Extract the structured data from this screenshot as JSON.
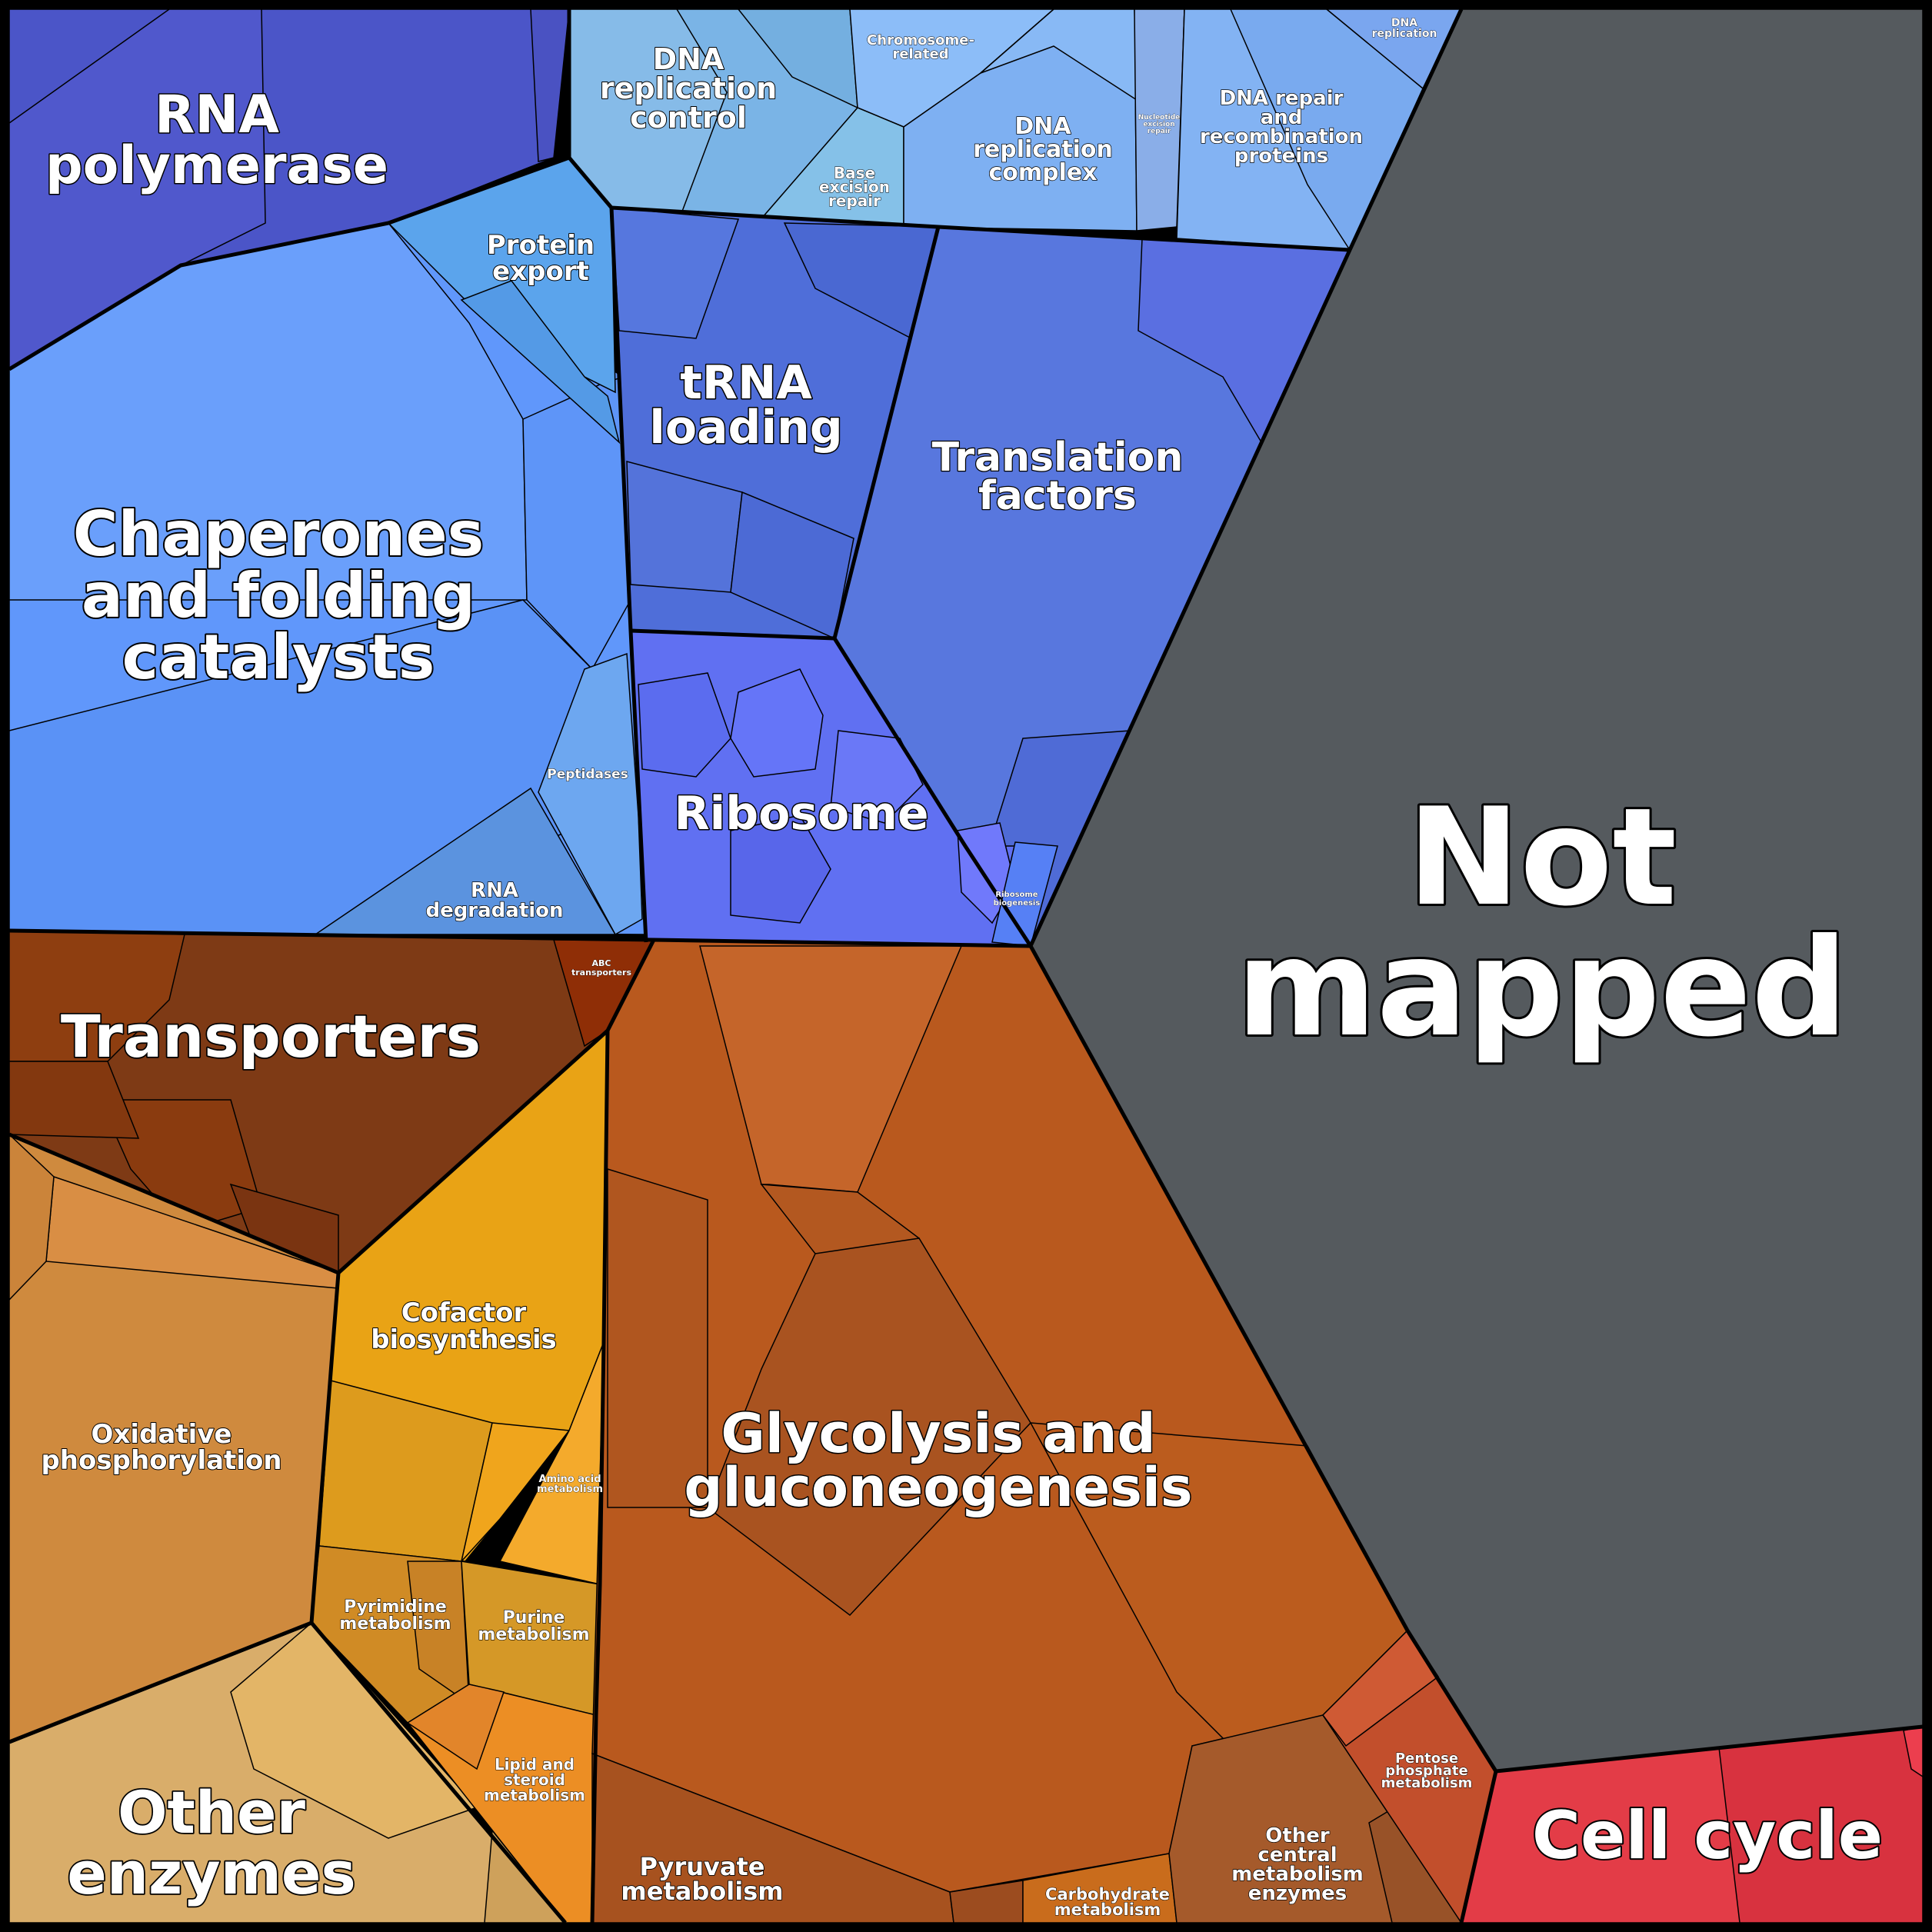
{
  "chart_data": {
    "type": "voronoi-treemap",
    "title": "",
    "colors": {
      "not_mapped": "#555a5e",
      "cell_cycle": "#e33c47",
      "genetic_info": "#5a8ff5",
      "metabolism": "#c0601f",
      "transport": "#7e3a15"
    },
    "groups": [
      {
        "label": "Not mapped",
        "color": "#555a5e"
      },
      {
        "label": "Cell cycle",
        "color": "#e33c47"
      },
      {
        "label": "RNA polymerase",
        "color": "#4b55c8"
      },
      {
        "label": "Chaperones and folding catalysts",
        "color": "#6097fb"
      },
      {
        "label": "Protein export",
        "color": "#5ba4ec"
      },
      {
        "label": "Peptidases",
        "color": "#6da7f0"
      },
      {
        "label": "RNA degradation",
        "color": "#5b93df"
      },
      {
        "label": "DNA replication control",
        "color": "#7ab4e6"
      },
      {
        "label": "Chromosome-related",
        "color": "#8cbdf8"
      },
      {
        "label": "Base excision repair",
        "color": "#85c1e8"
      },
      {
        "label": "DNA replication complex",
        "color": "#7eb0f2"
      },
      {
        "label": "Nucleotide excision repair",
        "color": "#8aaee8"
      },
      {
        "label": "DNA repair and recombination proteins",
        "color": "#79aaef"
      },
      {
        "label": "DNA replication",
        "color": "#7aa6ef"
      },
      {
        "label": "tRNA loading",
        "color": "#4f6ed9"
      },
      {
        "label": "Translation factors",
        "color": "#5877de"
      },
      {
        "label": "Ribosome",
        "color": "#6070f2"
      },
      {
        "label": "Ribosome biogenesis",
        "color": "#5680f5"
      },
      {
        "label": "Transporters",
        "color": "#7e3a15"
      },
      {
        "label": "ABC transporters",
        "color": "#8f2e06"
      },
      {
        "label": "Oxidative phosphorylation",
        "color": "#cf8a3e"
      },
      {
        "label": "Other enzymes",
        "color": "#d9ad6a"
      },
      {
        "label": "Cofactor biosynthesis",
        "color": "#e9a315"
      },
      {
        "label": "Amino acid metabolism",
        "color": "#f4aa2c"
      },
      {
        "label": "Pyrimidine metabolism",
        "color": "#d08b25"
      },
      {
        "label": "Purine metabolism",
        "color": "#d59827"
      },
      {
        "label": "Lipid and steroid metabolism",
        "color": "#ec8e24"
      },
      {
        "label": "Glycolysis and gluconeogenesis",
        "color": "#b9591e"
      },
      {
        "label": "Pyruvate metabolism",
        "color": "#a7521f"
      },
      {
        "label": "Carbohydrate metabolism",
        "color": "#c96c1c"
      },
      {
        "label": "Other central metabolism enzymes",
        "color": "#a55a2b"
      },
      {
        "label": "Pentose phosphate metabolism",
        "color": "#c24f2c"
      }
    ]
  },
  "labels": {
    "not_mapped": "Not mapped",
    "not_mapped_l1": "Not",
    "not_mapped_l2": "mapped",
    "cell_cycle": "Cell cycle",
    "rna_pol_l1": "RNA",
    "rna_pol_l2": "polymerase",
    "chap_l1": "Chaperones",
    "chap_l2": "and folding",
    "chap_l3": "catalysts",
    "protein_export_l1": "Protein",
    "protein_export_l2": "export",
    "peptidases": "Peptidases",
    "rna_deg_l1": "RNA",
    "rna_deg_l2": "degradation",
    "dna_rep_ctrl_l1": "DNA",
    "dna_rep_ctrl_l2": "replication",
    "dna_rep_ctrl_l3": "control",
    "chrom_l1": "Chromosome-",
    "chrom_l2": "related",
    "ber_l1": "Base",
    "ber_l2": "excision",
    "ber_l3": "repair",
    "dna_complex_l1": "DNA",
    "dna_complex_l2": "replication",
    "dna_complex_l3": "complex",
    "ner_l1": "Nucleotide",
    "ner_l2": "excision",
    "ner_l3": "repair",
    "dna_repair_l1": "DNA repair",
    "dna_repair_l2": "and",
    "dna_repair_l3": "recombination",
    "dna_repair_l4": "proteins",
    "dna_replication_l1": "DNA",
    "dna_replication_l2": "replication",
    "trna_l1": "tRNA",
    "trna_l2": "loading",
    "transl_l1": "Translation",
    "transl_l2": "factors",
    "ribosome": "Ribosome",
    "ribo_bio_l1": "Ribosome",
    "ribo_bio_l2": "biogenesis",
    "transporters": "Transporters",
    "abc_l1": "ABC",
    "abc_l2": "transporters",
    "oxphos_l1": "Oxidative",
    "oxphos_l2": "phosphorylation",
    "other_enz_l1": "Other",
    "other_enz_l2": "enzymes",
    "cofactor_l1": "Cofactor",
    "cofactor_l2": "biosynthesis",
    "amino_l1": "Amino acid",
    "amino_l2": "metabolism",
    "pyrimidine_l1": "Pyrimidine",
    "pyrimidine_l2": "metabolism",
    "purine_l1": "Purine",
    "purine_l2": "metabolism",
    "lipid_l1": "Lipid and",
    "lipid_l2": "steroid",
    "lipid_l3": "metabolism",
    "glyco_l1": "Glycolysis and",
    "glyco_l2": "gluconeogenesis",
    "pyruvate_l1": "Pyruvate",
    "pyruvate_l2": "metabolism",
    "carb_l1": "Carbohydrate",
    "carb_l2": "metabolism",
    "other_central_l1": "Other",
    "other_central_l2": "central",
    "other_central_l3": "metabolism",
    "other_central_l4": "enzymes",
    "pentose_l1": "Pentose",
    "pentose_l2": "phosphate",
    "pentose_l3": "metabolism"
  }
}
